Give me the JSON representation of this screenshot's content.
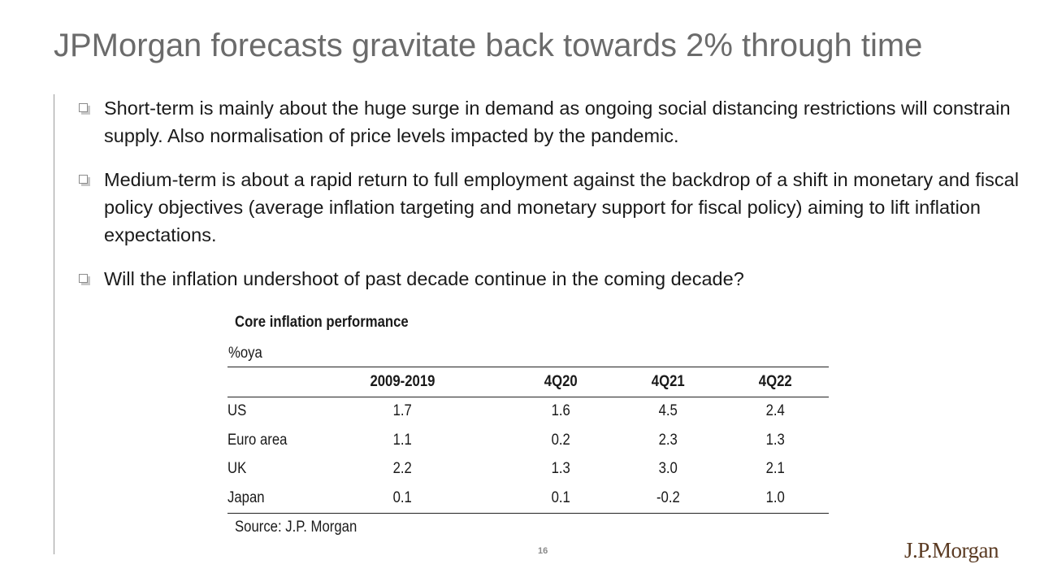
{
  "slide": {
    "title": "JPMorgan forecasts gravitate back towards 2% through time",
    "page_number": "16",
    "logo_text": "J.P.Morgan"
  },
  "bullets": [
    "Short-term is mainly about the huge surge in demand as ongoing social distancing restrictions will constrain supply. Also normalisation of price levels impacted by the pandemic.",
    "Medium-term is about a rapid return to full employment against the backdrop of a shift in monetary and fiscal policy objectives (average inflation targeting and monetary support for fiscal policy) aiming to lift inflation expectations.",
    "Will the inflation undershoot of past decade continue in the coming decade?"
  ],
  "table": {
    "title": "Core inflation performance",
    "unit": "%oya",
    "columns": [
      "",
      "2009-2019",
      "4Q20",
      "4Q21",
      "4Q22"
    ],
    "rows": [
      [
        "US",
        "1.7",
        "1.6",
        "4.5",
        "2.4"
      ],
      [
        "Euro area",
        "1.1",
        "0.2",
        "2.3",
        "1.3"
      ],
      [
        "UK",
        "2.2",
        "1.3",
        "3.0",
        "2.1"
      ],
      [
        "Japan",
        "0.1",
        "0.1",
        "-0.2",
        "1.0"
      ]
    ],
    "source": "Source: J.P. Morgan"
  }
}
